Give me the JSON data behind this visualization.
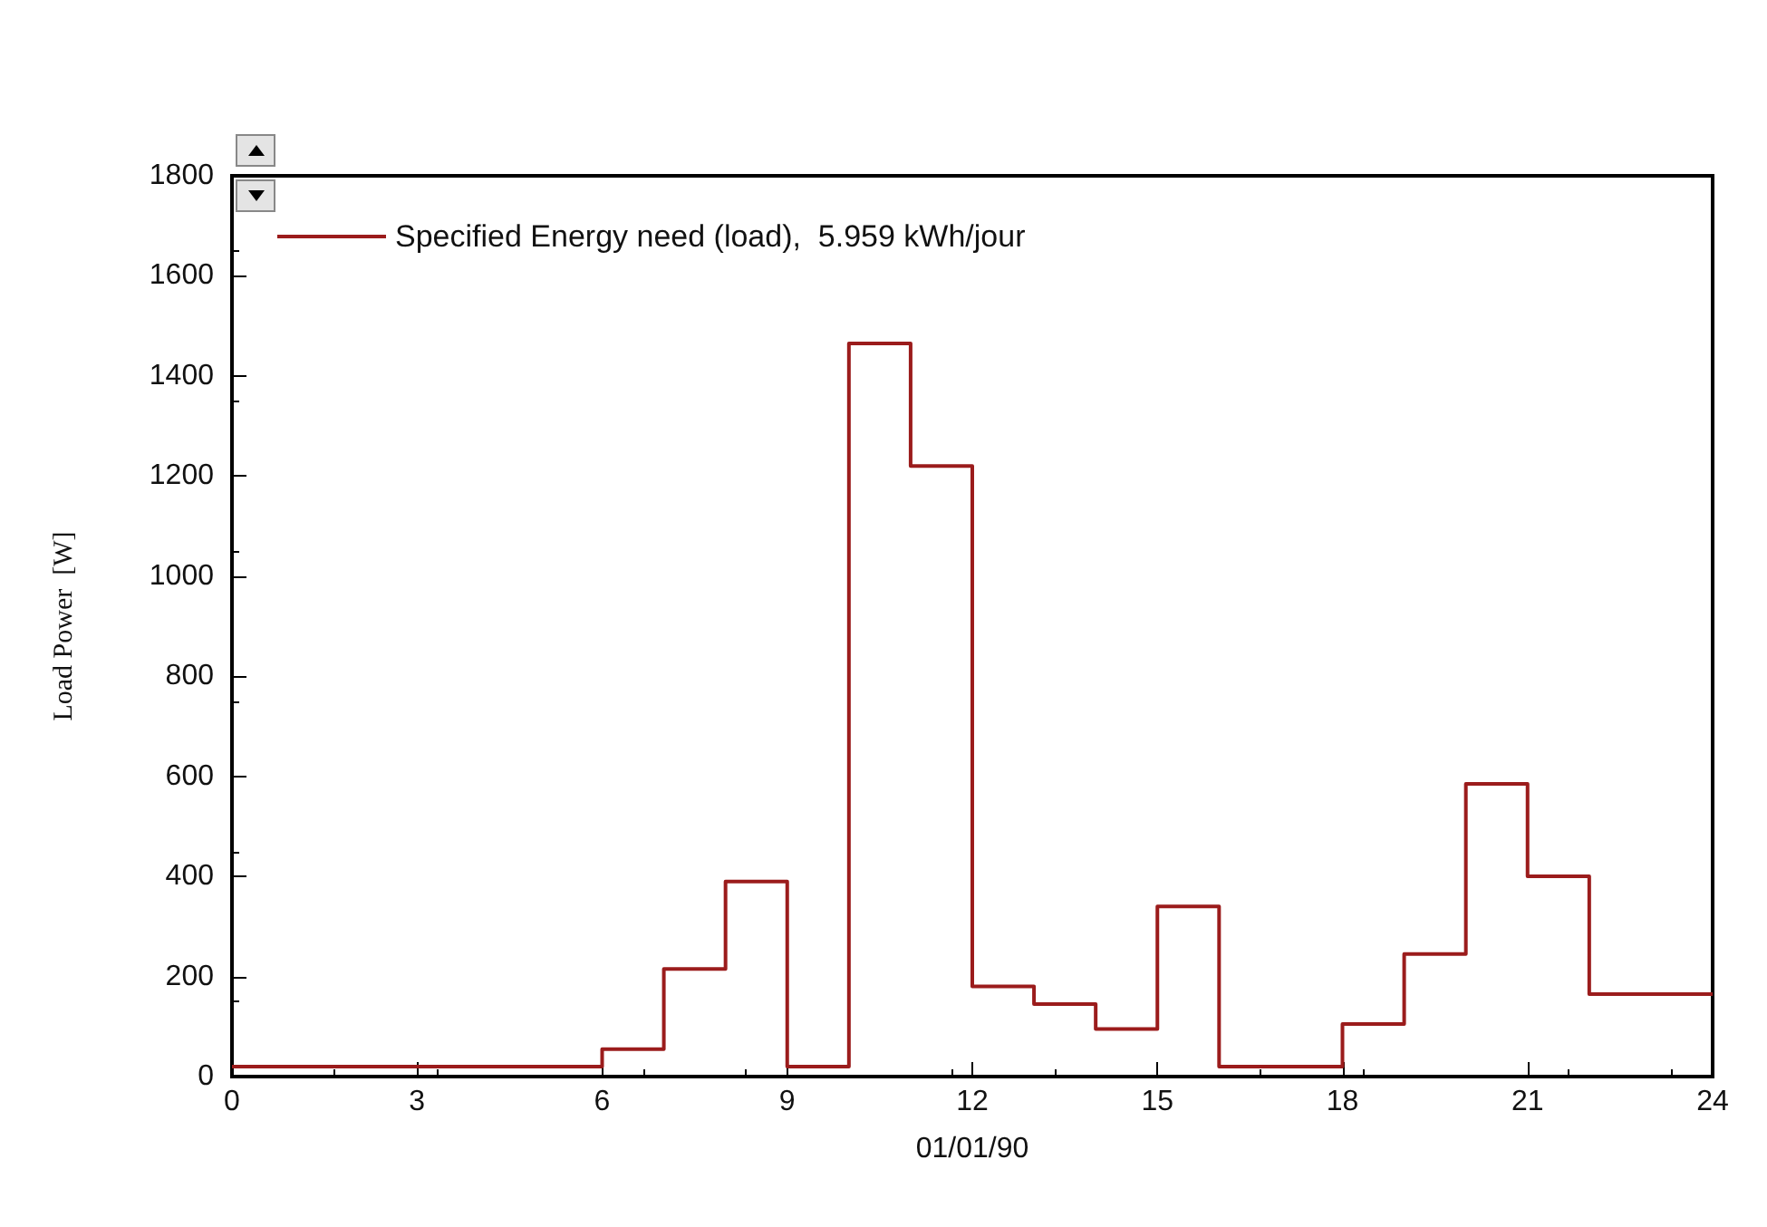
{
  "chart_data": {
    "type": "step",
    "xlabel": "01/01/90",
    "ylabel": "Load Power  [W]",
    "x": [
      0,
      1,
      2,
      3,
      4,
      5,
      6,
      7,
      8,
      9,
      10,
      11,
      12,
      13,
      14,
      15,
      16,
      17,
      18,
      19,
      20,
      21,
      22,
      23,
      24
    ],
    "series": [
      {
        "name": "Specified Energy need (load),  5.959 kWh/jour",
        "color": "#9b1c1c",
        "values": [
          20,
          20,
          20,
          20,
          20,
          20,
          55,
          215,
          390,
          20,
          1465,
          1220,
          180,
          145,
          95,
          340,
          20,
          20,
          105,
          245,
          585,
          400,
          165,
          165,
          165
        ]
      }
    ],
    "xlim": [
      0,
      24
    ],
    "xticks": [
      0,
      3,
      6,
      9,
      12,
      15,
      18,
      21,
      24
    ],
    "ylim": [
      0,
      1800
    ],
    "yticks": [
      0,
      200,
      400,
      600,
      800,
      1000,
      1200,
      1400,
      1600,
      1800
    ],
    "grid": false,
    "legend": "top left",
    "marker": "none",
    "line_style": "solid"
  }
}
